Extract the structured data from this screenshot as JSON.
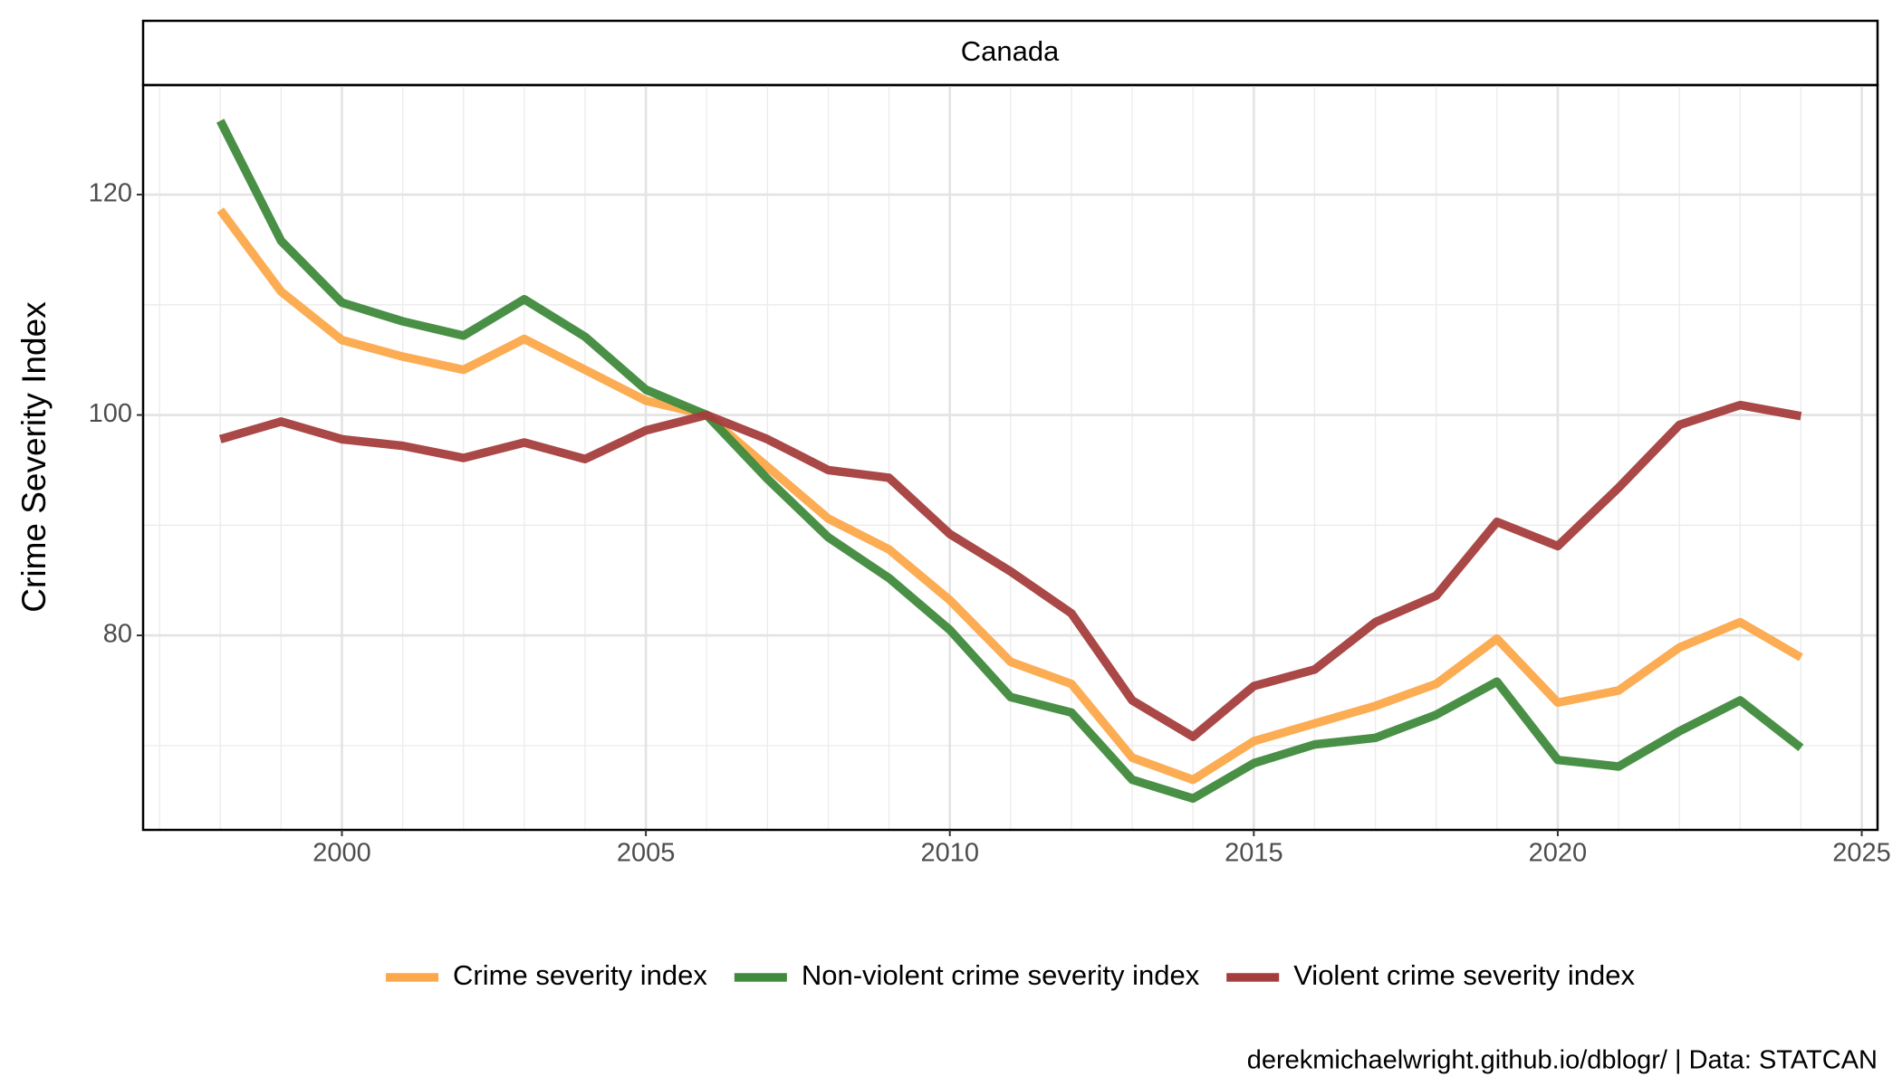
{
  "chart_data": {
    "type": "line",
    "panel": "Canada",
    "y_label": "Crime Severity Index",
    "caption": "derekmichaelwright.github.io/dblogr/ | Data: STATCAN",
    "x": [
      1998,
      1999,
      2000,
      2001,
      2002,
      2003,
      2004,
      2005,
      2006,
      2007,
      2008,
      2009,
      2010,
      2011,
      2012,
      2013,
      2014,
      2015,
      2016,
      2017,
      2018,
      2019,
      2020,
      2021,
      2022,
      2023,
      2024
    ],
    "series": [
      {
        "name": "Crime severity index",
        "color": "#fca84a",
        "values": [
          118.6,
          111.2,
          106.8,
          105.3,
          104.1,
          106.9,
          104.1,
          101.3,
          100,
          95.3,
          90.6,
          87.8,
          83.2,
          77.6,
          75.6,
          68.9,
          66.9,
          70.4,
          72.0,
          73.6,
          75.6,
          79.7,
          73.9,
          75.0,
          78.9,
          81.2,
          78.0
        ]
      },
      {
        "name": "Non-violent crime severity index",
        "color": "#3f8a3c",
        "values": [
          126.7,
          115.8,
          110.2,
          108.5,
          107.2,
          110.5,
          107.1,
          102.3,
          100,
          94.2,
          88.9,
          85.2,
          80.5,
          74.4,
          73.0,
          66.9,
          65.2,
          68.4,
          70.1,
          70.7,
          72.8,
          75.8,
          68.7,
          68.1,
          71.3,
          74.1,
          69.8
        ]
      },
      {
        "name": "Violent crime severity index",
        "color": "#a53d3d",
        "values": [
          97.8,
          99.4,
          97.8,
          97.2,
          96.1,
          97.5,
          96.0,
          98.6,
          100.0,
          97.8,
          95.0,
          94.3,
          89.2,
          85.8,
          82.0,
          74.1,
          70.8,
          75.4,
          76.9,
          81.2,
          83.6,
          90.3,
          88.1,
          93.4,
          99.1,
          100.9,
          99.9
        ]
      }
    ],
    "xlim": [
      1996.73,
      2025.26
    ],
    "xticks": [
      2000,
      2005,
      2010,
      2015,
      2020,
      2025
    ],
    "ylim": [
      62.35,
      129.94
    ],
    "yticks": [
      80,
      100,
      120
    ],
    "grid": true,
    "legend": "bottom"
  }
}
